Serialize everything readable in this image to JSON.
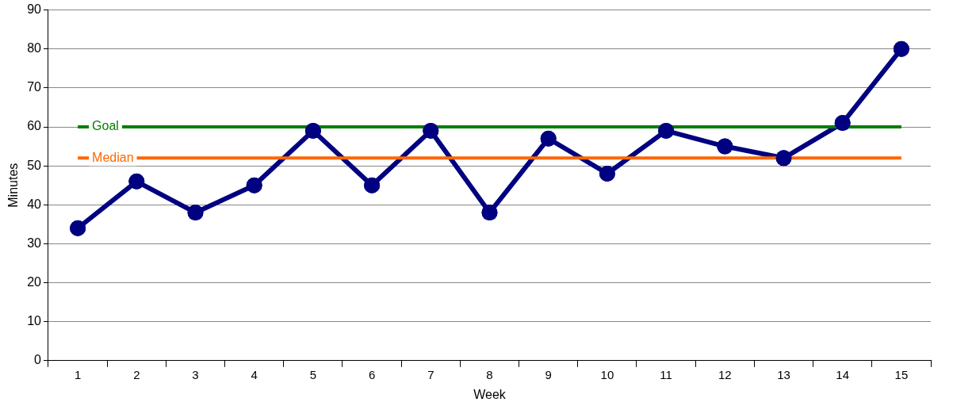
{
  "chart_data": {
    "type": "line",
    "xlabel": "Week",
    "ylabel": "Minutes",
    "categories": [
      "1",
      "2",
      "3",
      "4",
      "5",
      "6",
      "7",
      "8",
      "9",
      "10",
      "11",
      "12",
      "13",
      "14",
      "15"
    ],
    "series": [
      {
        "color": "#000080",
        "values": [
          34,
          46,
          38,
          45,
          59,
          45,
          59,
          38,
          57,
          48,
          59,
          55,
          52,
          61,
          80
        ]
      }
    ],
    "ylim": [
      0,
      90
    ],
    "yticks": [
      0,
      10,
      20,
      30,
      40,
      50,
      60,
      70,
      80,
      90
    ],
    "grid": "y",
    "legend": false,
    "marker": "circle",
    "line_style": "solid",
    "ref_lines": [
      {
        "axis": "y",
        "value": 60,
        "label": "Goal",
        "color": "#008000"
      },
      {
        "axis": "y",
        "value": 52,
        "label": "Median",
        "color": "#ff6600"
      }
    ]
  }
}
